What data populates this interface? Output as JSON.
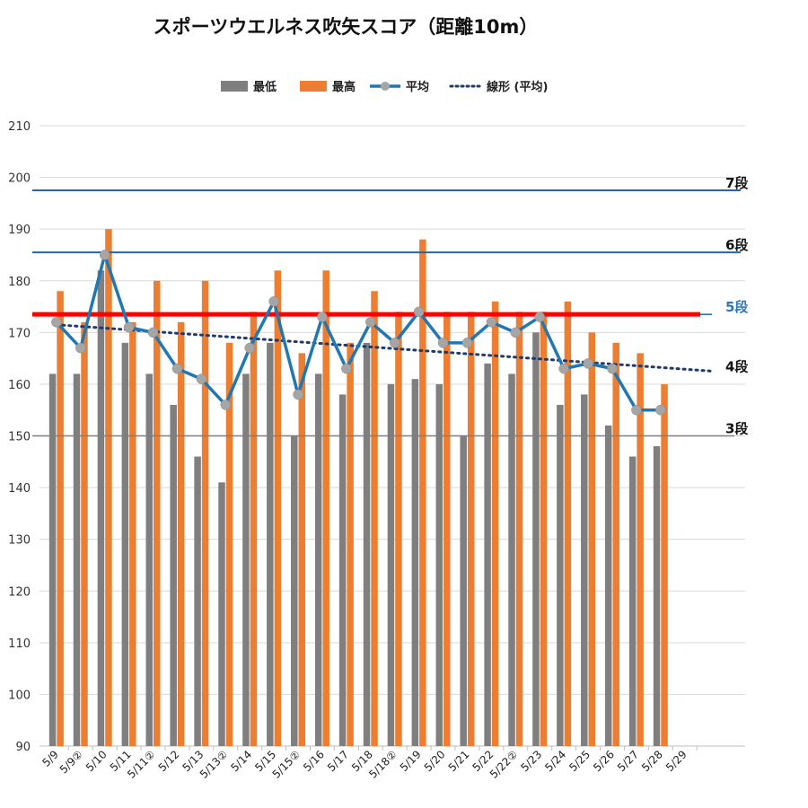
{
  "chart_data": {
    "type": "bar",
    "title": "スポーツウエルネス吹矢スコア（距離10m）",
    "categories": [
      "5/9",
      "5/9②",
      "5/10",
      "5/11",
      "5/11②",
      "5/12",
      "5/13",
      "5/13②",
      "5/14",
      "5/15",
      "5/15②",
      "5/16",
      "5/17",
      "5/18",
      "5/18②",
      "5/19",
      "5/20",
      "5/21",
      "5/22",
      "5/22②",
      "5/23",
      "5/24",
      "5/25",
      "5/26",
      "5/27",
      "5/28",
      "5/29"
    ],
    "series": [
      {
        "name": "最低",
        "color": "#7f7f7f",
        "values": [
          162,
          162,
          182,
          168,
          162,
          156,
          146,
          141,
          162,
          168,
          150,
          162,
          158,
          168,
          160,
          161,
          160,
          150,
          164,
          162,
          170,
          156,
          158,
          152,
          146,
          148,
          null
        ]
      },
      {
        "name": "最高",
        "color": "#ed7d31",
        "values": [
          178,
          172,
          190,
          172,
          180,
          172,
          180,
          168,
          174,
          182,
          166,
          182,
          168,
          178,
          174,
          188,
          174,
          174,
          176,
          174,
          174,
          176,
          170,
          168,
          166,
          160,
          null
        ]
      },
      {
        "name": "平均",
        "color": "#1f77b4",
        "marker_color": "#a5a5a5",
        "values": [
          172,
          167,
          185,
          171,
          170,
          163,
          161,
          156,
          167,
          176,
          158,
          173,
          163,
          172,
          168,
          174,
          168,
          168,
          172,
          170,
          173,
          163,
          164,
          163,
          155,
          155,
          null
        ]
      }
    ],
    "trendline": {
      "name": "線形 (平均)",
      "color": "#1f3a6e",
      "start": 171.5,
      "end": 162.5
    },
    "ylim": [
      90,
      210
    ],
    "yticks": [
      90,
      100,
      110,
      120,
      130,
      140,
      150,
      160,
      170,
      180,
      190,
      200,
      210
    ],
    "legend_position": "top",
    "reference_lines": [
      {
        "label": "7段",
        "value": 197.5,
        "color": "#1f6aa5",
        "label_color": "#111111"
      },
      {
        "label": "6段",
        "value": 185.5,
        "color": "#1f6aa5",
        "label_color": "#111111"
      },
      {
        "label": "5段",
        "value": 173.5,
        "color": "#ff0000",
        "label_color": "#2e75b6"
      },
      {
        "label": "4段",
        "value": 162,
        "color": "none",
        "label_color": "#111111"
      },
      {
        "label": "3段",
        "value": 150,
        "color": "#7f7f7f",
        "label_color": "#111111"
      }
    ],
    "grid": true
  }
}
